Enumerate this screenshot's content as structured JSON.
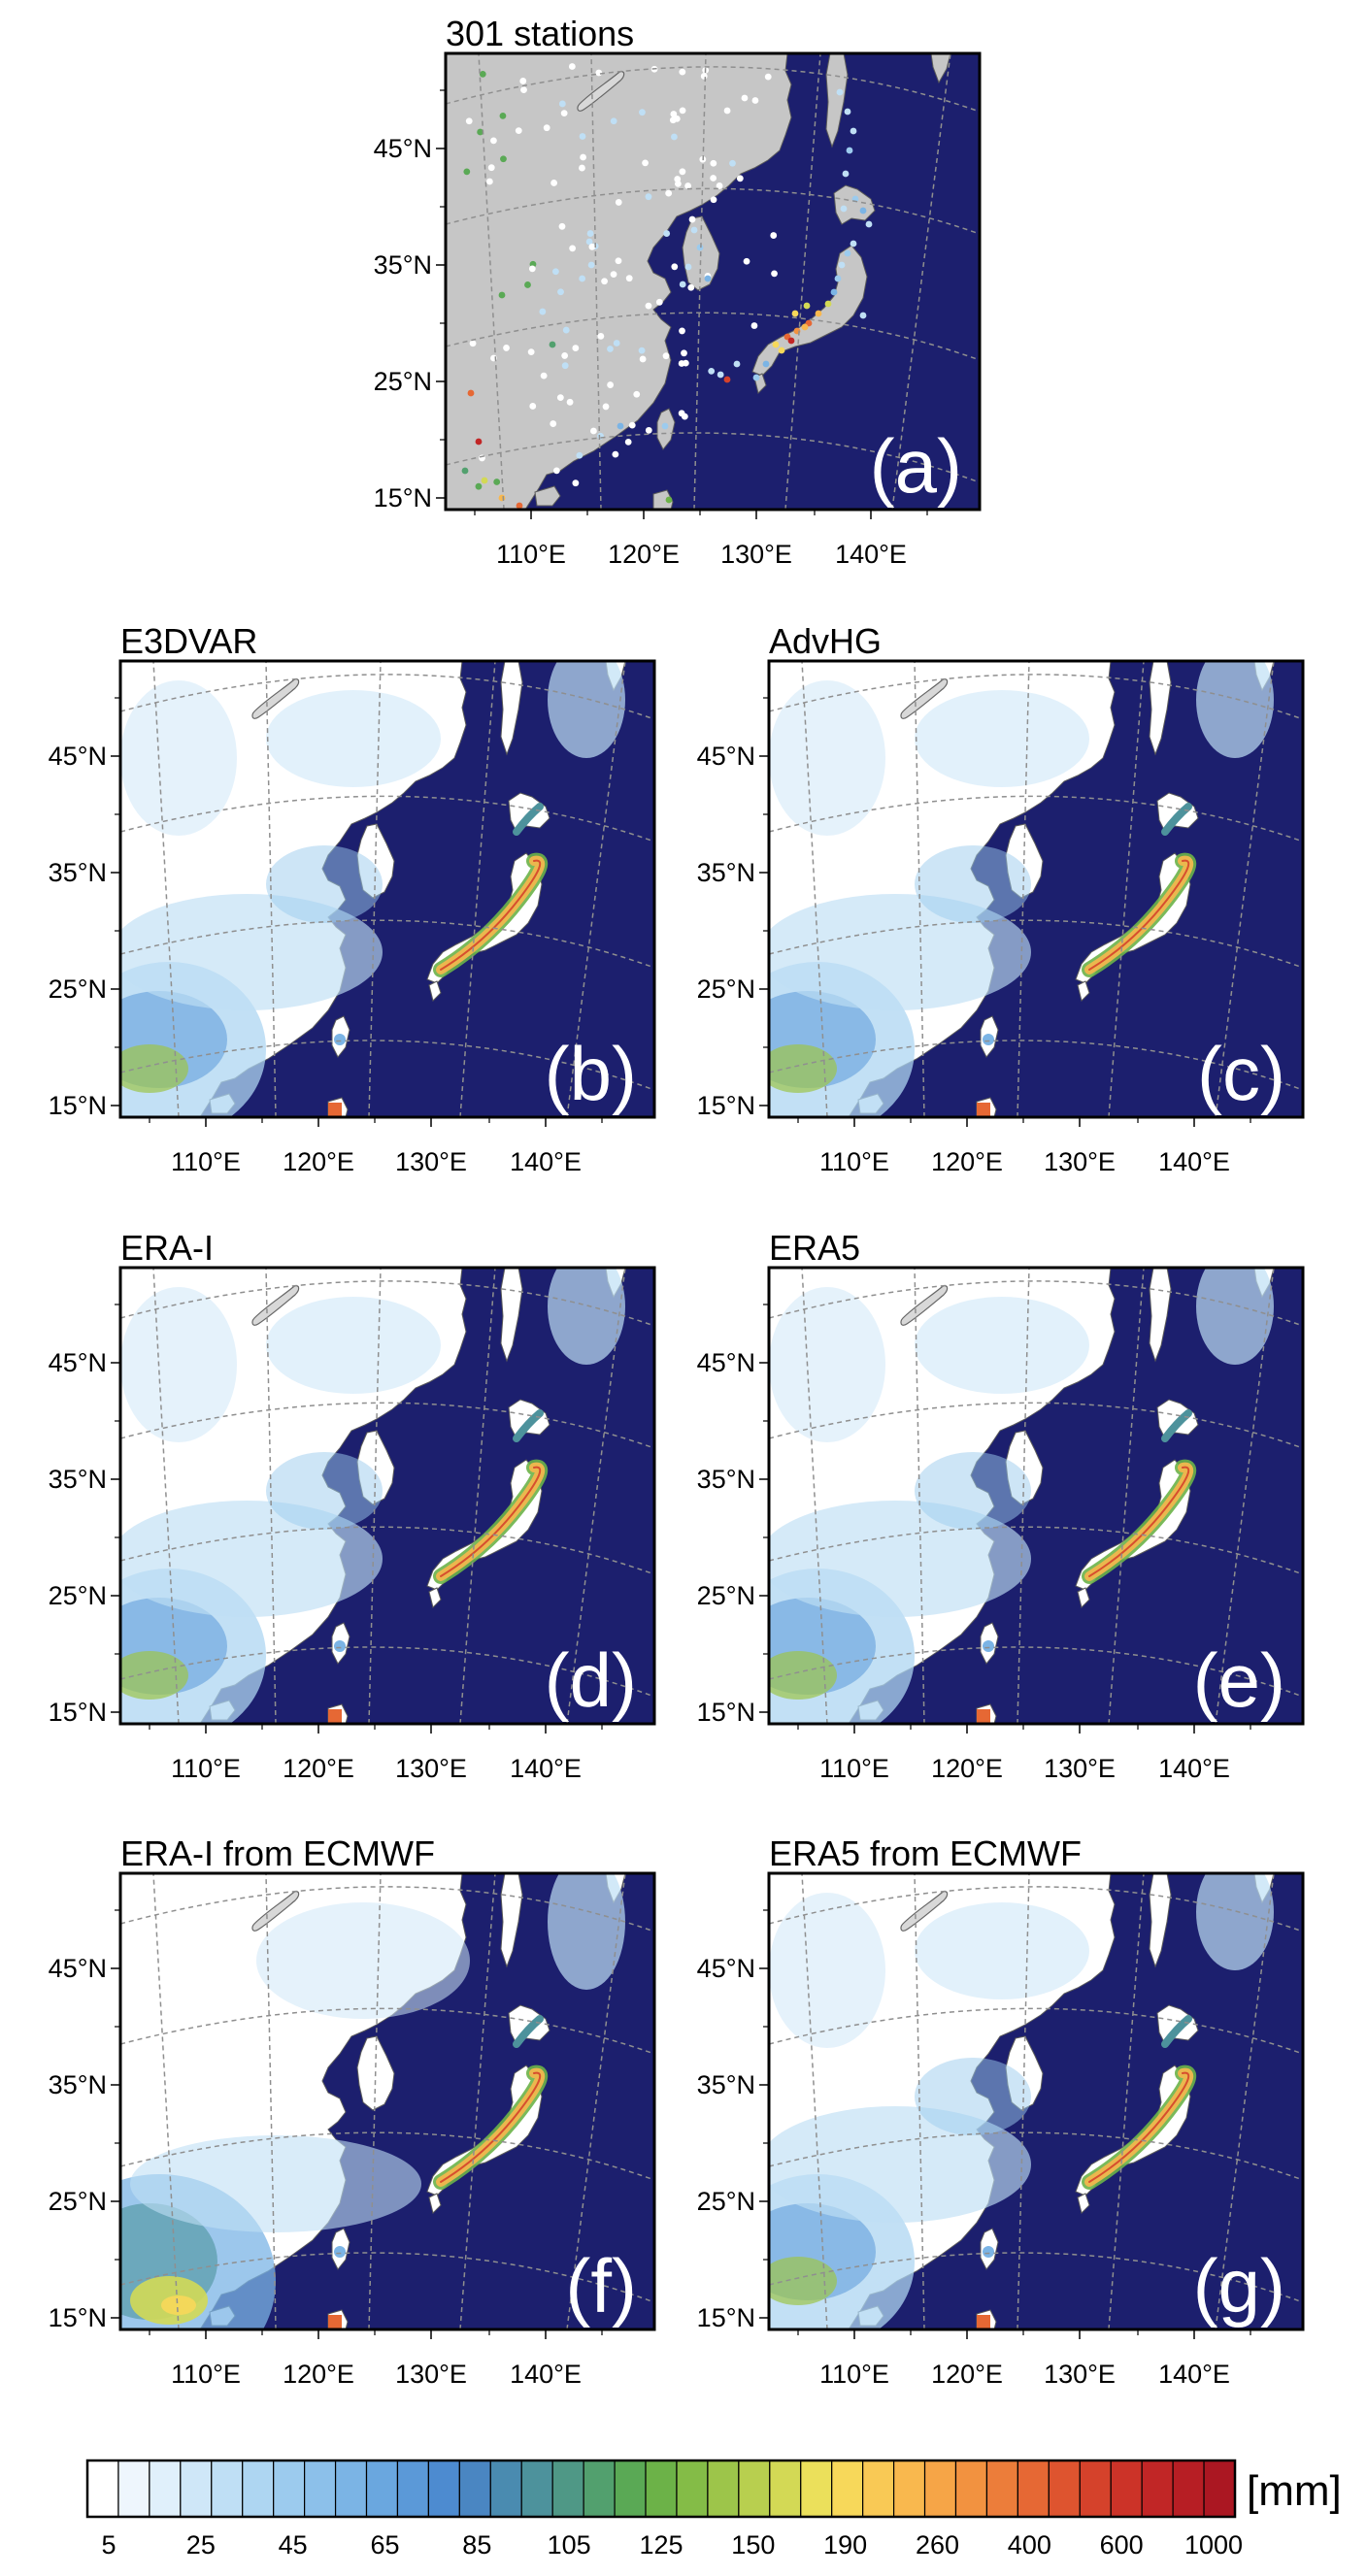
{
  "panels": [
    {
      "id": "a",
      "title": "301 stations",
      "label": "(a)",
      "kind": "stations"
    },
    {
      "id": "b",
      "title": "E3DVAR",
      "label": "(b)",
      "kind": "field"
    },
    {
      "id": "c",
      "title": "AdvHG",
      "label": "(c)",
      "kind": "field"
    },
    {
      "id": "d",
      "title": "ERA-I",
      "label": "(d)",
      "kind": "field"
    },
    {
      "id": "e",
      "title": "ERA5",
      "label": "(e)",
      "kind": "field"
    },
    {
      "id": "f",
      "title": "ERA-I from ECMWF",
      "label": "(f)",
      "kind": "field-smooth"
    },
    {
      "id": "g",
      "title": "ERA5 from ECMWF",
      "label": "(g)",
      "kind": "field"
    }
  ],
  "lat_labels": [
    "45°N",
    "35°N",
    "25°N",
    "15°N"
  ],
  "lon_labels": [
    "110°E",
    "120°E",
    "130°E",
    "140°E"
  ],
  "colorbar": {
    "unit": "[mm]",
    "tick_labels": [
      "5",
      "25",
      "45",
      "65",
      "85",
      "105",
      "125",
      "150",
      "190",
      "260",
      "400",
      "600",
      "1000"
    ],
    "colors": [
      "#ffffff",
      "#eef6fd",
      "#e0f0fb",
      "#cfe7f8",
      "#bfdff5",
      "#aed6f2",
      "#9ccbee",
      "#8cc0ea",
      "#7bb4e5",
      "#6aa7df",
      "#5b99d8",
      "#4d8bd0",
      "#4a86c2",
      "#4a8bb0",
      "#4d929c",
      "#4f9886",
      "#52a06e",
      "#5aa955",
      "#6cb248",
      "#84bc47",
      "#9dc54a",
      "#b8cf4f",
      "#d3d955",
      "#ebe05b",
      "#f7d85a",
      "#f9c955",
      "#f9b84e",
      "#f6a547",
      "#f29240",
      "#ec7d3a",
      "#e66834",
      "#de542f",
      "#d5422b",
      "#cc3328",
      "#c12626",
      "#b71e24",
      "#ab1722"
    ]
  }
}
